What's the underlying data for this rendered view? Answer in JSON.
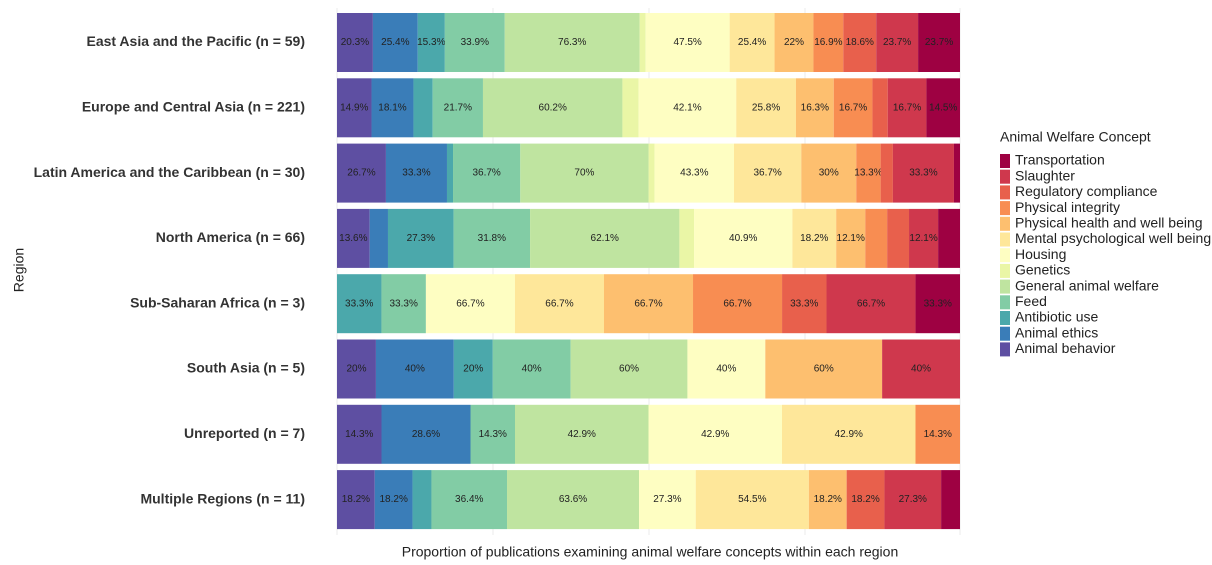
{
  "chart_data": {
    "type": "bar",
    "orientation": "horizontal",
    "stacked": "proportional",
    "y_label": "Region",
    "x_label": "Proportion of publications examining animal welfare concepts within each region",
    "legend_title": "Animal Welfare Concept",
    "categories": [
      "East Asia and the Pacific (n = 59)",
      "Europe and Central Asia (n = 221)",
      "Latin America and the Caribbean (n = 30)",
      "North America (n = 66)",
      "Sub-Saharan Africa (n = 3)",
      "South Asia (n = 5)",
      "Unreported (n = 7)",
      "Multiple Regions (n = 11)"
    ],
    "series": [
      {
        "name": "Animal behavior",
        "color": "#5e4fa2",
        "values": [
          20.3,
          14.9,
          26.7,
          13.6,
          0,
          20,
          14.3,
          18.2
        ],
        "value_labels": [
          "20.3%",
          "14.9%",
          "26.7%",
          "13.6%",
          null,
          "20%",
          "14.3%",
          "18.2%"
        ]
      },
      {
        "name": "Animal ethics",
        "color": "#3a7db8",
        "values": [
          25.4,
          18.1,
          33.3,
          7.6,
          0,
          40,
          28.6,
          18.2
        ],
        "value_labels": [
          "25.4%",
          "18.1%",
          "33.3%",
          null,
          null,
          "40%",
          "28.6%",
          "18.2%"
        ]
      },
      {
        "name": "Antibiotic use",
        "color": "#4ba8ab",
        "values": [
          15.3,
          8.3,
          3.3,
          27.3,
          33.3,
          20,
          0,
          9.1
        ],
        "value_labels": [
          "15.3%",
          null,
          null,
          "27.3%",
          "33.3%",
          "20%",
          null,
          null
        ]
      },
      {
        "name": "Feed",
        "color": "#82cca5",
        "values": [
          33.9,
          21.7,
          36.7,
          31.8,
          33.3,
          40,
          14.3,
          36.4
        ],
        "value_labels": [
          "33.9%",
          "21.7%",
          "36.7%",
          "31.8%",
          "33.3%",
          "40%",
          "14.3%",
          "36.4%"
        ]
      },
      {
        "name": "General animal welfare",
        "color": "#bfe4a0",
        "values": [
          76.3,
          60.2,
          70,
          62.1,
          0,
          60,
          42.9,
          63.6
        ],
        "value_labels": [
          "76.3%",
          "60.2%",
          "70%",
          "62.1%",
          null,
          "60%",
          "42.9%",
          "63.6%"
        ]
      },
      {
        "name": "Genetics",
        "color": "#eaf6a6",
        "values": [
          3.4,
          7,
          3.3,
          6.1,
          0,
          0,
          0,
          0
        ],
        "value_labels": [
          null,
          null,
          null,
          null,
          null,
          null,
          null,
          null
        ]
      },
      {
        "name": "Housing",
        "color": "#fefec2",
        "values": [
          47.5,
          42.1,
          43.3,
          40.9,
          66.7,
          40,
          42.9,
          27.3
        ],
        "value_labels": [
          "47.5%",
          "42.1%",
          "43.3%",
          "40.9%",
          "66.7%",
          "40%",
          "42.9%",
          "27.3%"
        ]
      },
      {
        "name": "Mental psychological well being",
        "color": "#fee79a",
        "values": [
          25.4,
          25.8,
          36.7,
          18.2,
          66.7,
          0,
          42.9,
          54.5
        ],
        "value_labels": [
          "25.4%",
          "25.8%",
          "36.7%",
          "18.2%",
          "66.7%",
          null,
          "42.9%",
          "54.5%"
        ]
      },
      {
        "name": "Physical health and well being",
        "color": "#fdbf6f",
        "values": [
          22,
          16.3,
          30,
          12.1,
          66.7,
          60,
          0,
          18.2
        ],
        "value_labels": [
          "22%",
          "16.3%",
          "30%",
          "12.1%",
          "66.7%",
          "60%",
          null,
          "18.2%"
        ]
      },
      {
        "name": "Physical integrity",
        "color": "#f88d52",
        "values": [
          16.9,
          16.7,
          13.3,
          9.1,
          66.7,
          0,
          14.3,
          0
        ],
        "value_labels": [
          "16.9%",
          "16.7%",
          "13.3%",
          null,
          "66.7%",
          null,
          "14.3%",
          null
        ]
      },
      {
        "name": "Regulatory compliance",
        "color": "#e8604c",
        "values": [
          18.6,
          6.6,
          6.7,
          9.1,
          33.3,
          0,
          0,
          18.2
        ],
        "value_labels": [
          "18.6%",
          null,
          null,
          null,
          "33.3%",
          null,
          null,
          "18.2%"
        ]
      },
      {
        "name": "Slaughter",
        "color": "#cf384d",
        "values": [
          23.7,
          16.7,
          33.3,
          12.1,
          66.7,
          40,
          0,
          27.3
        ],
        "value_labels": [
          "23.7%",
          "16.7%",
          "33.3%",
          "12.1%",
          "66.7%",
          "40%",
          null,
          "27.3%"
        ]
      },
      {
        "name": "Transportation",
        "color": "#9e0142",
        "values": [
          23.7,
          14.5,
          3.3,
          9.1,
          33.3,
          0,
          0,
          9.1
        ],
        "value_labels": [
          "23.7%",
          "14.5%",
          null,
          null,
          "33.3%",
          null,
          null,
          null
        ]
      }
    ]
  }
}
